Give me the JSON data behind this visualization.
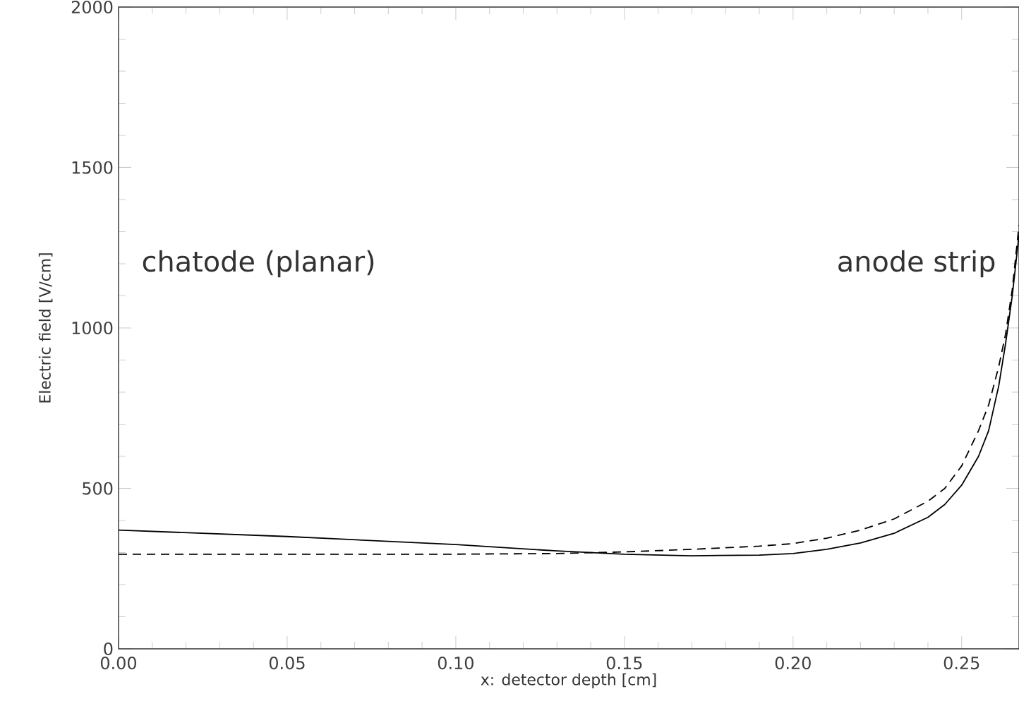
{
  "chart_data": {
    "type": "line",
    "xlabel": "x: detector depth [cm]",
    "ylabel": "Electric field [V/cm]",
    "annotations": [
      "chatode (planar)",
      "anode strip"
    ],
    "x": [
      0,
      0.05,
      0.1,
      0.13,
      0.15,
      0.17,
      0.19,
      0.2,
      0.21,
      0.22,
      0.23,
      0.24,
      0.245,
      0.25,
      0.255,
      0.258,
      0.261,
      0.263,
      0.265,
      0.267
    ],
    "series": [
      {
        "color": "#000000",
        "line_style": "solid",
        "values": [
          370,
          350,
          325,
          305,
          295,
          290,
          292,
          297,
          310,
          330,
          360,
          410,
          450,
          510,
          600,
          680,
          820,
          950,
          1100,
          1290
        ]
      },
      {
        "color": "#000000",
        "line_style": "dashed",
        "values": [
          295,
          295,
          295,
          297,
          302,
          310,
          320,
          328,
          345,
          370,
          405,
          460,
          500,
          570,
          680,
          760,
          880,
          980,
          1120,
          1320
        ]
      }
    ],
    "xlim": [
      0,
      0.267
    ],
    "ylim": [
      0,
      2000
    ],
    "xticks": [
      {
        "value": 0,
        "label": "0.00"
      },
      {
        "value": 0.05,
        "label": "0.05"
      },
      {
        "value": 0.1,
        "label": "0.10"
      },
      {
        "value": 0.15,
        "label": "0.15"
      },
      {
        "value": 0.2,
        "label": "0.20"
      },
      {
        "value": 0.25,
        "label": "0.25"
      }
    ],
    "yticks": [
      0,
      500,
      1000,
      1500,
      2000
    ],
    "grid": false,
    "marker": "none"
  }
}
